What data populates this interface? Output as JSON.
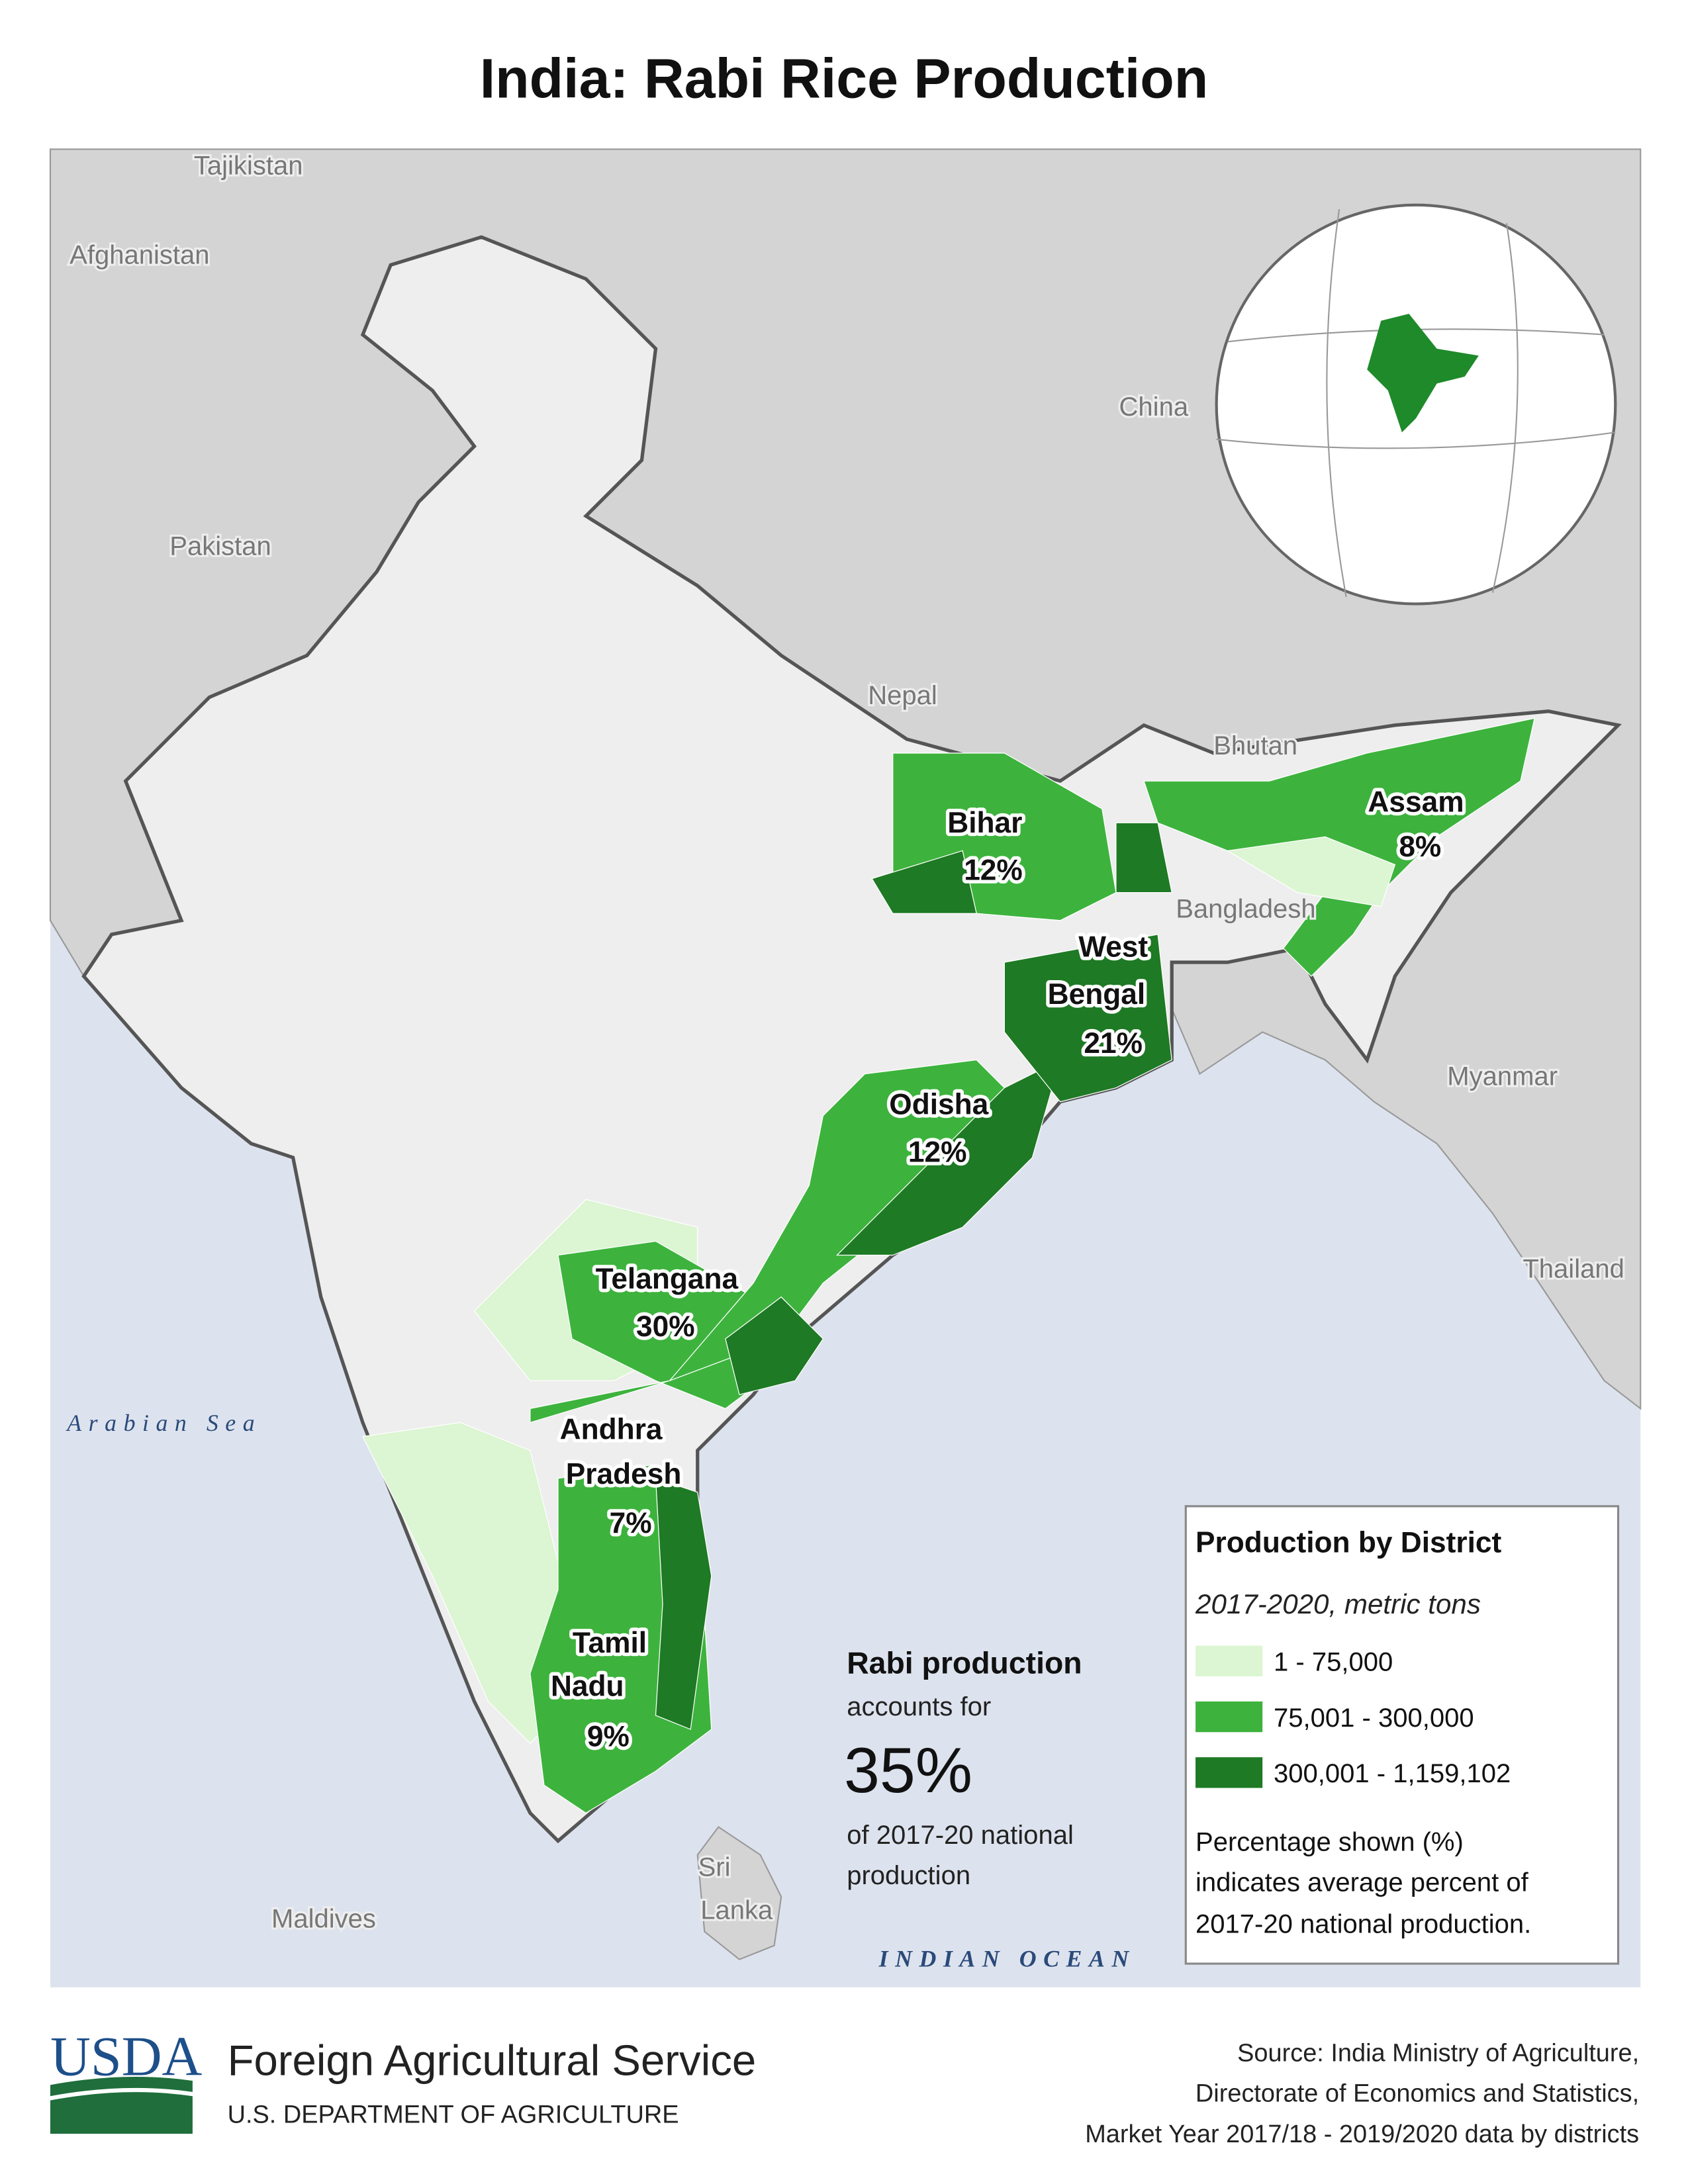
{
  "header": {
    "title": "India: Rabi Rice Production"
  },
  "map": {
    "countries": [
      {
        "lines": [
          "Tajikistan"
        ]
      },
      {
        "lines": [
          "Afghanistan"
        ]
      },
      {
        "lines": [
          "Pakistan"
        ]
      },
      {
        "lines": [
          "China"
        ]
      },
      {
        "lines": [
          "Nepal"
        ]
      },
      {
        "lines": [
          "Bhutan"
        ]
      },
      {
        "lines": [
          "Bangladesh"
        ]
      },
      {
        "lines": [
          "Myanmar"
        ]
      },
      {
        "lines": [
          "Thailand"
        ]
      },
      {
        "lines": [
          "Sri",
          "Lanka"
        ]
      },
      {
        "lines": [
          "Maldives"
        ]
      }
    ],
    "water": [
      "Arabian Sea",
      "INDIAN OCEAN"
    ],
    "regions": [
      {
        "lines": [
          "Bihar"
        ],
        "share": "12%"
      },
      {
        "lines": [
          "Assam"
        ],
        "share": "8%"
      },
      {
        "lines": [
          "West",
          "Bengal"
        ],
        "share": "21%"
      },
      {
        "lines": [
          "Odisha"
        ],
        "share": "12%"
      },
      {
        "lines": [
          "Telangana"
        ],
        "share": "30%"
      },
      {
        "lines": [
          "Andhra",
          "Pradesh"
        ],
        "share": "7%"
      },
      {
        "lines": [
          "Tamil",
          "Nadu"
        ],
        "share": "9%"
      }
    ]
  },
  "callout": {
    "lead": "Rabi production",
    "line1": "accounts for",
    "figure": "35%",
    "line2": "of 2017-20 national",
    "line3": "production"
  },
  "legend": {
    "title": "Production by District",
    "subtitle": "2017-2020, metric tons",
    "classes": [
      {
        "label": "1 - 75,000",
        "color": "#dcf5d3"
      },
      {
        "label": "75,001 - 300,000",
        "color": "#3db33d"
      },
      {
        "label": "300,001 - 1,159,102",
        "color": "#1e7a24"
      }
    ],
    "note": [
      "Percentage shown (%)",
      "indicates average percent of",
      "2017-20 national production."
    ]
  },
  "footer": {
    "logo": "USDA",
    "agency": "Foreign Agricultural Service",
    "department": "U.S. DEPARTMENT OF AGRICULTURE",
    "source": [
      "Source: India Ministry of Agriculture,",
      "Directorate of Economics and Statistics,",
      "Market Year 2017/18 - 2019/2020 data by districts"
    ]
  }
}
